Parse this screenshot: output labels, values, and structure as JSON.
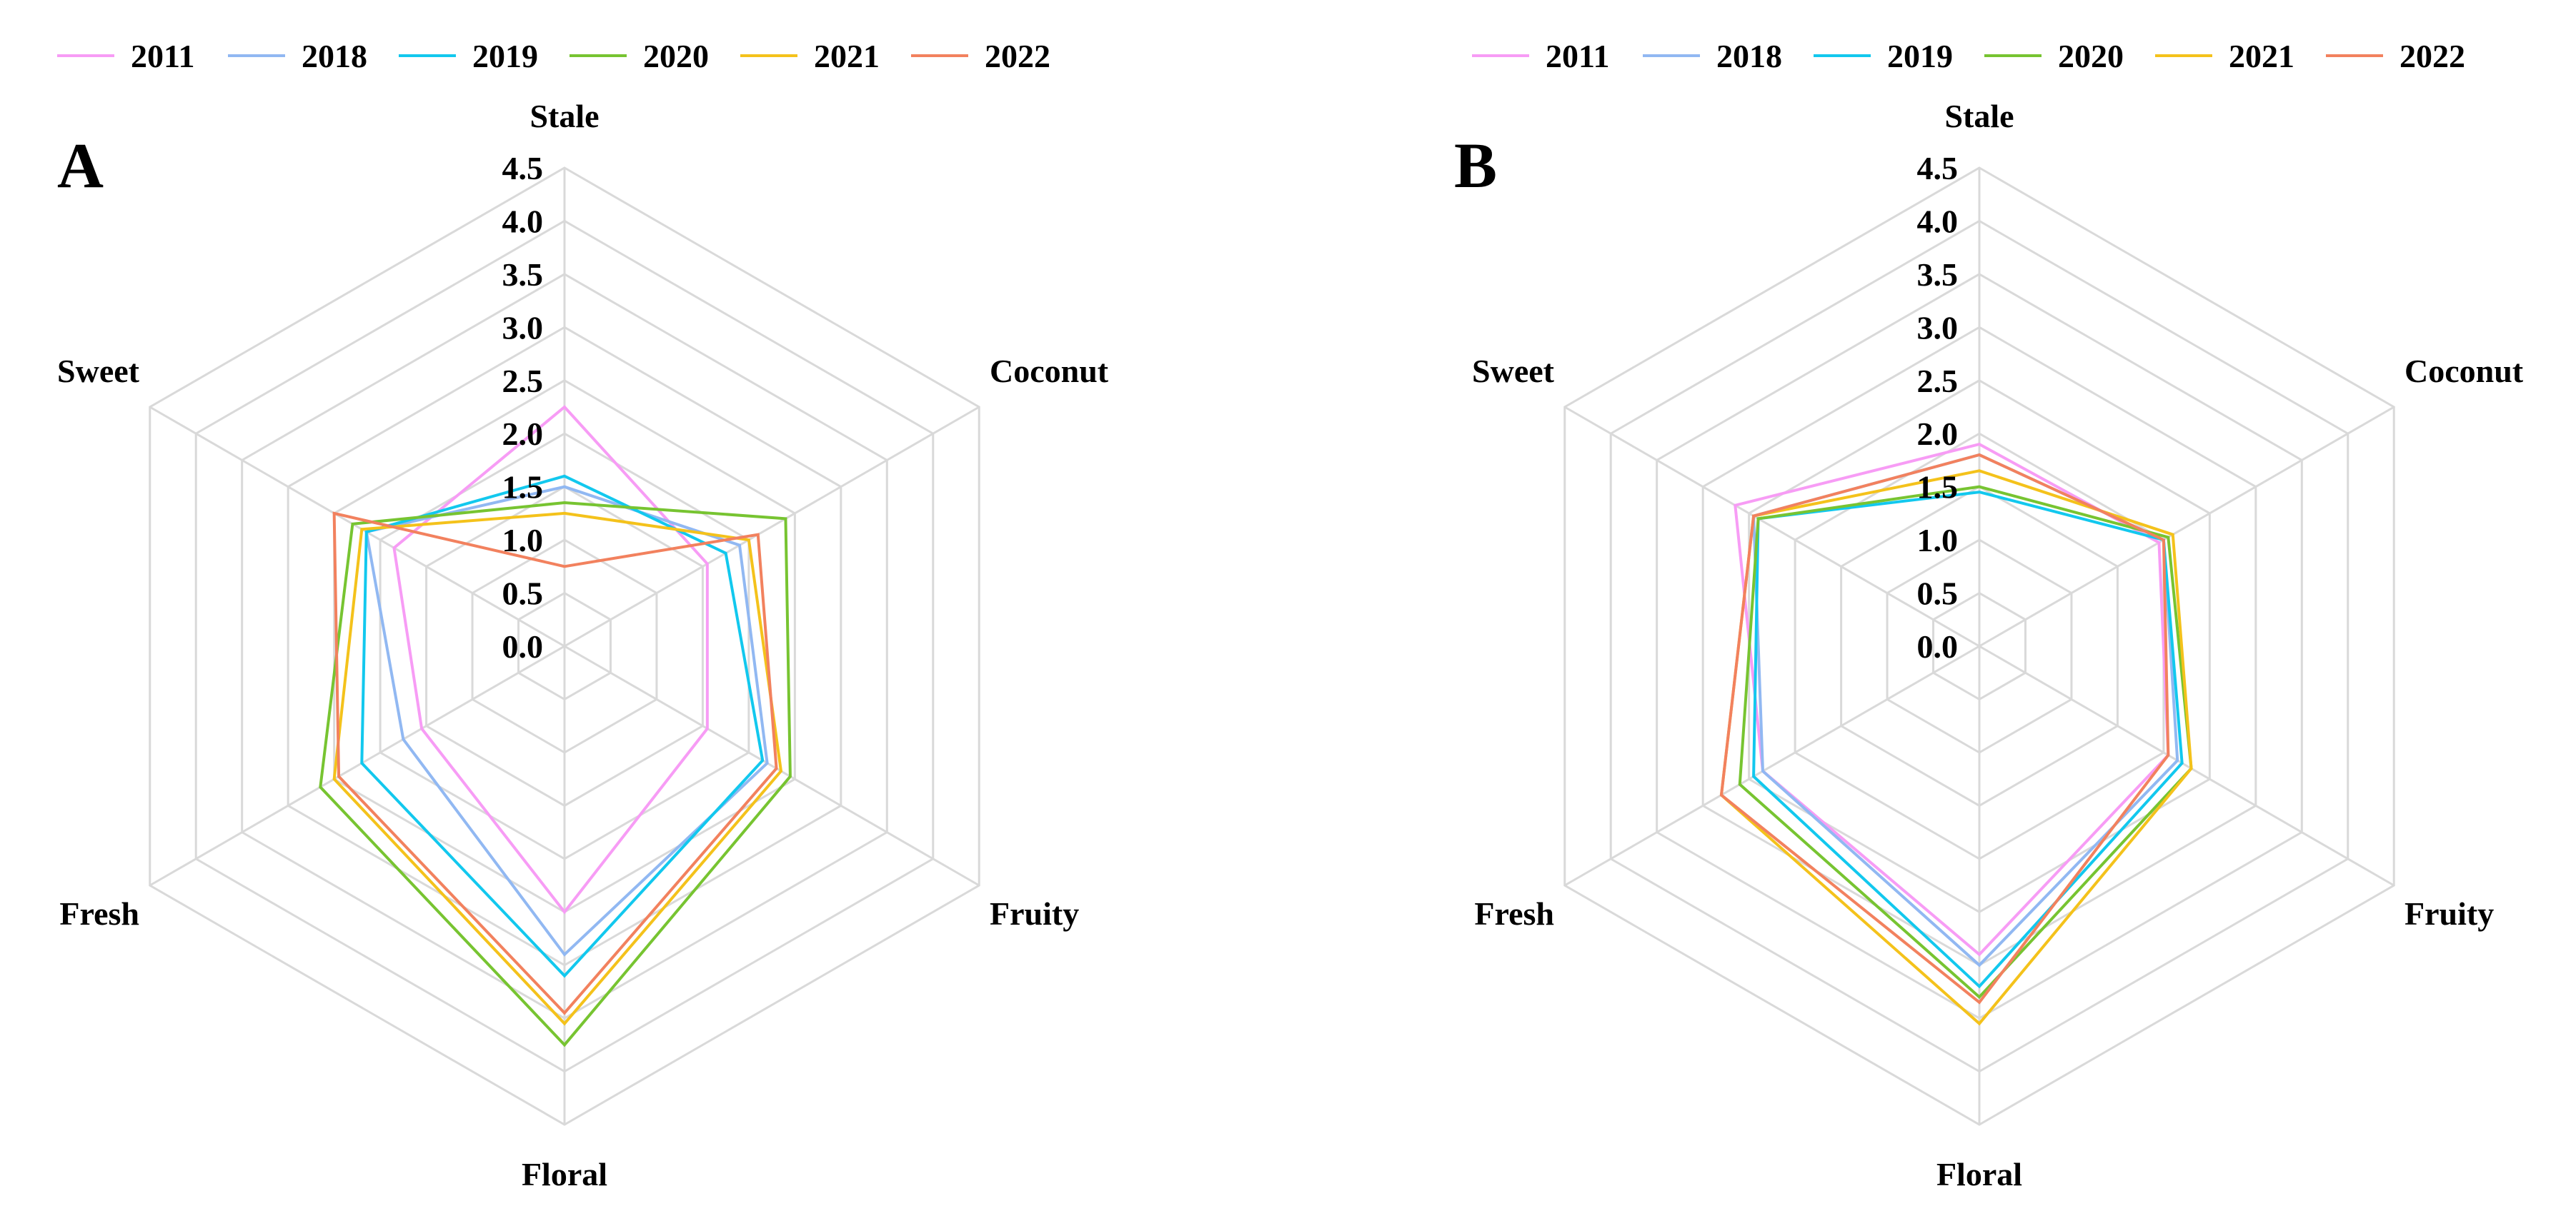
{
  "chart_data": [
    {
      "type": "radar",
      "panel": "A",
      "axes": [
        "Stale",
        "Coconut",
        "Fruity",
        "Floral",
        "Fresh",
        "Sweet"
      ],
      "ticks": [
        "0.0",
        "0.5",
        "1.0",
        "1.5",
        "2.0",
        "2.5",
        "3.0",
        "3.5",
        "4.0",
        "4.5"
      ],
      "range": [
        0,
        4.5
      ],
      "series": [
        {
          "name": "2011",
          "color": "#F79CF5",
          "values": [
            2.25,
            1.55,
            1.55,
            2.5,
            1.55,
            1.85
          ]
        },
        {
          "name": "2018",
          "color": "#91B8F2",
          "values": [
            1.5,
            1.9,
            2.2,
            2.9,
            1.75,
            2.15
          ]
        },
        {
          "name": "2019",
          "color": "#12C8EE",
          "values": [
            1.6,
            1.75,
            2.15,
            3.1,
            2.2,
            2.15
          ]
        },
        {
          "name": "2020",
          "color": "#77C431",
          "values": [
            1.35,
            2.4,
            2.45,
            3.75,
            2.65,
            2.3
          ]
        },
        {
          "name": "2021",
          "color": "#F4C21B",
          "values": [
            1.25,
            2.0,
            2.35,
            3.55,
            2.5,
            2.2
          ]
        },
        {
          "name": "2022",
          "color": "#F2815E",
          "values": [
            0.75,
            2.1,
            2.3,
            3.45,
            2.45,
            2.5
          ]
        }
      ]
    },
    {
      "type": "radar",
      "panel": "B",
      "axes": [
        "Stale",
        "Coconut",
        "Fruity",
        "Floral",
        "Fresh",
        "Sweet"
      ],
      "ticks": [
        "0.0",
        "0.5",
        "1.0",
        "1.5",
        "2.0",
        "2.5",
        "3.0",
        "3.5",
        "4.0",
        "4.5"
      ],
      "range": [
        0,
        4.5
      ],
      "series": [
        {
          "name": "2011",
          "color": "#F79CF5",
          "values": [
            1.9,
            1.95,
            2.05,
            2.9,
            2.35,
            2.65
          ]
        },
        {
          "name": "2018",
          "color": "#91B8F2",
          "values": [
            1.8,
            2.0,
            2.15,
            3.0,
            2.35,
            2.45
          ]
        },
        {
          "name": "2019",
          "color": "#12C8EE",
          "values": [
            1.45,
            2.0,
            2.2,
            3.2,
            2.45,
            2.4
          ]
        },
        {
          "name": "2020",
          "color": "#77C431",
          "values": [
            1.5,
            2.05,
            2.3,
            3.3,
            2.6,
            2.4
          ]
        },
        {
          "name": "2021",
          "color": "#F4C21B",
          "values": [
            1.65,
            2.1,
            2.3,
            3.55,
            2.8,
            2.45
          ]
        },
        {
          "name": "2022",
          "color": "#F2815E",
          "values": [
            1.8,
            2.0,
            2.05,
            3.35,
            2.8,
            2.45
          ]
        }
      ]
    }
  ]
}
